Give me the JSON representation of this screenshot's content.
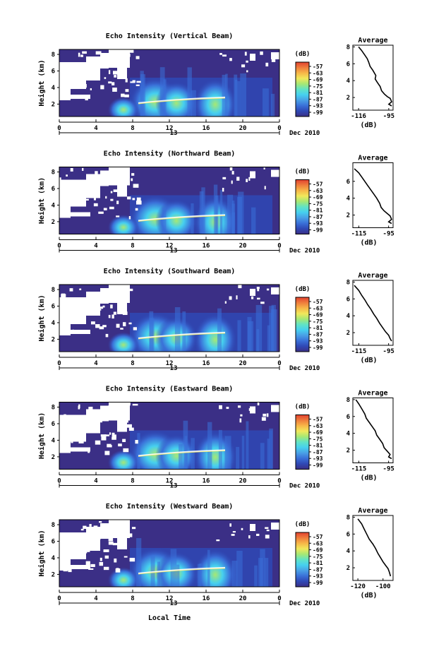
{
  "x_axis_label": "Local Time",
  "date_label": "Dec 2010",
  "day_label": "13",
  "unit_label": "(dB)",
  "avg_title": "Average",
  "colors": {
    "scale": [
      "#3b2f86",
      "#2f48b5",
      "#3a70d8",
      "#49a0e6",
      "#46d0ef",
      "#61e3c5",
      "#a6e874",
      "#f1e85b",
      "#f7b748",
      "#ef7e3c",
      "#e24130"
    ]
  },
  "chart_data": [
    {
      "type": "heatmap",
      "title": "Echo Intensity (Vertical Beam)",
      "ylabel": "Height (km)",
      "x_ticks": [
        "0",
        "4",
        "8",
        "12",
        "16",
        "20",
        "0"
      ],
      "y_ticks": [
        "8",
        "6",
        "4",
        "2"
      ],
      "colorbar_ticks": [
        "-57",
        "-63",
        "-69",
        "-75",
        "-81",
        "-87",
        "-93",
        "-99"
      ],
      "avg_profile": {
        "type": "line",
        "title": "Average",
        "xlabel": "(dB)",
        "x_ticks": [
          "-116",
          "-95"
        ],
        "y_ticks": [
          "8",
          "6",
          "4",
          "2"
        ],
        "xlim": [
          -120,
          -92
        ],
        "ylim": [
          0.5,
          8.2
        ],
        "points": [
          [
            -116,
            8.0
          ],
          [
            -114,
            7.6
          ],
          [
            -112,
            7.1
          ],
          [
            -110,
            6.6
          ],
          [
            -109,
            6.2
          ],
          [
            -108,
            5.7
          ],
          [
            -106,
            5.2
          ],
          [
            -104,
            4.6
          ],
          [
            -104.5,
            4.2
          ],
          [
            -103,
            3.8
          ],
          [
            -101,
            3.3
          ],
          [
            -100,
            2.8
          ],
          [
            -98,
            2.4
          ],
          [
            -96,
            2.1
          ],
          [
            -94,
            1.9
          ],
          [
            -93,
            1.5
          ],
          [
            -95,
            1.2
          ],
          [
            -93,
            1.0
          ]
        ]
      }
    },
    {
      "type": "heatmap",
      "title": "Echo Intensity (Northward Beam)",
      "ylabel": "Height (km)",
      "x_ticks": [
        "0",
        "4",
        "8",
        "12",
        "16",
        "20",
        "0"
      ],
      "y_ticks": [
        "8",
        "6",
        "4",
        "2"
      ],
      "colorbar_ticks": [
        "-57",
        "-63",
        "-69",
        "-75",
        "-81",
        "-87",
        "-93",
        "-99"
      ],
      "avg_profile": {
        "type": "line",
        "title": "Average",
        "xlabel": "(dB)",
        "x_ticks": [
          "-115",
          "-95"
        ],
        "y_ticks": [
          "6",
          "4",
          "2"
        ],
        "xlim": [
          -119,
          -92
        ],
        "ylim": [
          0.5,
          8.2
        ],
        "points": [
          [
            -118,
            7.5
          ],
          [
            -115,
            7.0
          ],
          [
            -113,
            6.5
          ],
          [
            -111,
            6.0
          ],
          [
            -109,
            5.5
          ],
          [
            -107,
            5.0
          ],
          [
            -105,
            4.5
          ],
          [
            -103,
            4.0
          ],
          [
            -101,
            3.4
          ],
          [
            -100,
            2.9
          ],
          [
            -98,
            2.5
          ],
          [
            -96,
            2.2
          ],
          [
            -94,
            1.9
          ],
          [
            -93,
            1.5
          ],
          [
            -95,
            1.2
          ],
          [
            -93,
            1.0
          ]
        ]
      }
    },
    {
      "type": "heatmap",
      "title": "Echo Intensity (Southward Beam)",
      "ylabel": "Height (km)",
      "x_ticks": [
        "0",
        "4",
        "8",
        "12",
        "16",
        "20",
        "0"
      ],
      "y_ticks": [
        "8",
        "6",
        "4",
        "2"
      ],
      "colorbar_ticks": [
        "-57",
        "-63",
        "-69",
        "-75",
        "-81",
        "-87",
        "-93",
        "-99"
      ],
      "avg_profile": {
        "type": "line",
        "title": "Average",
        "xlabel": "(dB)",
        "x_ticks": [
          "-115",
          "-95"
        ],
        "y_ticks": [
          "8",
          "6",
          "4",
          "2"
        ],
        "xlim": [
          -119,
          -92
        ],
        "ylim": [
          0.5,
          8.2
        ],
        "points": [
          [
            -118,
            7.6
          ],
          [
            -115,
            7.0
          ],
          [
            -113,
            6.4
          ],
          [
            -111,
            5.9
          ],
          [
            -109,
            5.3
          ],
          [
            -107,
            4.8
          ],
          [
            -105,
            4.2
          ],
          [
            -103,
            3.7
          ],
          [
            -101,
            3.1
          ],
          [
            -99,
            2.6
          ],
          [
            -97,
            2.1
          ],
          [
            -95,
            1.7
          ],
          [
            -94,
            1.3
          ],
          [
            -93,
            1.0
          ]
        ]
      }
    },
    {
      "type": "heatmap",
      "title": "Echo Intensity (Eastward Beam)",
      "ylabel": "Height (km)",
      "x_ticks": [
        "0",
        "4",
        "8",
        "12",
        "16",
        "20",
        "0"
      ],
      "y_ticks": [
        "8",
        "6",
        "4",
        "2"
      ],
      "colorbar_ticks": [
        "-57",
        "-63",
        "-69",
        "-75",
        "-81",
        "-87",
        "-93",
        "-99"
      ],
      "avg_profile": {
        "type": "line",
        "title": "Average",
        "xlabel": "(dB)",
        "x_ticks": [
          "-115",
          "-95"
        ],
        "y_ticks": [
          "8",
          "6",
          "4",
          "2"
        ],
        "xlim": [
          -119,
          -92
        ],
        "ylim": [
          0.5,
          8.2
        ],
        "points": [
          [
            -117,
            8.0
          ],
          [
            -115,
            7.5
          ],
          [
            -113,
            6.9
          ],
          [
            -111,
            6.3
          ],
          [
            -110,
            5.8
          ],
          [
            -108,
            5.3
          ],
          [
            -106,
            4.8
          ],
          [
            -104,
            4.3
          ],
          [
            -103,
            3.8
          ],
          [
            -101,
            3.3
          ],
          [
            -99,
            2.8
          ],
          [
            -98,
            2.3
          ],
          [
            -96,
            1.9
          ],
          [
            -94,
            1.5
          ],
          [
            -95,
            1.2
          ],
          [
            -93,
            1.0
          ]
        ]
      }
    },
    {
      "type": "heatmap",
      "title": "Echo Intensity (Westward Beam)",
      "ylabel": "Height (km)",
      "x_ticks": [
        "0",
        "4",
        "8",
        "12",
        "16",
        "20",
        "0"
      ],
      "y_ticks": [
        "8",
        "6",
        "4",
        "2"
      ],
      "colorbar_ticks": [
        "-57",
        "-63",
        "-69",
        "-75",
        "-81",
        "-87",
        "-93",
        "-99"
      ],
      "avg_profile": {
        "type": "line",
        "title": "Average",
        "xlabel": "(dB)",
        "x_ticks": [
          "-120",
          "-100"
        ],
        "y_ticks": [
          "8",
          "6",
          "4",
          "2"
        ],
        "xlim": [
          -124,
          -92
        ],
        "ylim": [
          0.5,
          8.2
        ],
        "points": [
          [
            -120,
            7.8
          ],
          [
            -117,
            7.2
          ],
          [
            -115,
            6.6
          ],
          [
            -113,
            6.0
          ],
          [
            -111,
            5.4
          ],
          [
            -108,
            4.8
          ],
          [
            -106,
            4.3
          ],
          [
            -104,
            3.7
          ],
          [
            -102,
            3.2
          ],
          [
            -100,
            2.7
          ],
          [
            -98,
            2.3
          ],
          [
            -96,
            1.9
          ],
          [
            -95,
            1.5
          ],
          [
            -94,
            1.0
          ]
        ]
      }
    }
  ]
}
